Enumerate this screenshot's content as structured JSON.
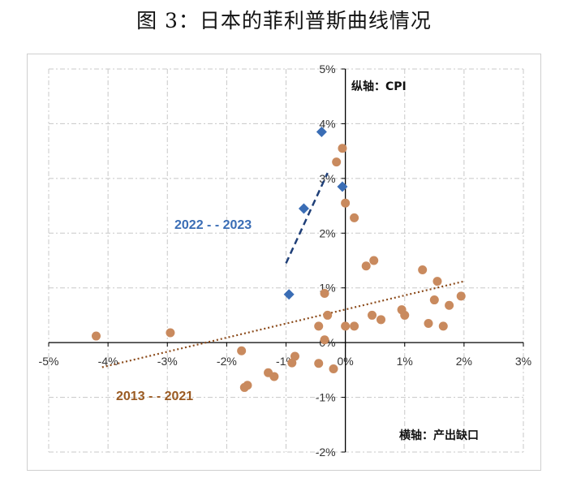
{
  "title": "图 3：日本的菲利普斯曲线情况",
  "chart_data": {
    "type": "scatter",
    "title": "图 3：日本的菲利普斯曲线情况",
    "ylabel": "纵轴：CPI",
    "xlabel": "横轴：产出缺口",
    "xlim": [
      -5,
      3
    ],
    "ylim": [
      -2,
      5
    ],
    "x_ticks": [
      -5,
      -4,
      -3,
      -2,
      -1,
      0,
      1,
      2,
      3
    ],
    "y_ticks": [
      -2,
      -1,
      0,
      1,
      2,
      3,
      4,
      5
    ],
    "x_tick_labels": [
      "-5%",
      "-4%",
      "-3%",
      "-2%",
      "-1%",
      "0%",
      "1%",
      "2%",
      "3%"
    ],
    "y_tick_labels": [
      "-2%",
      "-1%",
      "0%",
      "1%",
      "2%",
      "3%",
      "4%",
      "5%"
    ],
    "grid": true,
    "colors": {
      "series_2022": "#3a6db5",
      "series_2013": "#c98a5e",
      "trend_2013": "#8b4a1a"
    },
    "series": [
      {
        "name": "2022 - - 2023",
        "marker": "diamond",
        "points": [
          {
            "x": -0.95,
            "y": 0.88
          },
          {
            "x": -0.7,
            "y": 2.45
          },
          {
            "x": -0.4,
            "y": 3.85
          },
          {
            "x": -0.05,
            "y": 2.85
          }
        ],
        "trendline": {
          "style": "dashed",
          "from": [
            -1.0,
            1.45
          ],
          "to": [
            -0.3,
            3.1
          ]
        }
      },
      {
        "name": "2013 - - 2021",
        "marker": "circle",
        "points": [
          {
            "x": -4.2,
            "y": 0.12
          },
          {
            "x": -2.95,
            "y": 0.18
          },
          {
            "x": -1.75,
            "y": -0.15
          },
          {
            "x": -1.7,
            "y": -0.82
          },
          {
            "x": -1.65,
            "y": -0.78
          },
          {
            "x": -1.3,
            "y": -0.55
          },
          {
            "x": -1.2,
            "y": -0.62
          },
          {
            "x": -0.85,
            "y": -0.25
          },
          {
            "x": -0.9,
            "y": -0.37
          },
          {
            "x": -0.45,
            "y": 0.3
          },
          {
            "x": -0.45,
            "y": -0.38
          },
          {
            "x": -0.35,
            "y": 0.9
          },
          {
            "x": -0.3,
            "y": 0.5
          },
          {
            "x": -0.35,
            "y": 0.05
          },
          {
            "x": -0.2,
            "y": -0.48
          },
          {
            "x": -0.15,
            "y": 3.3
          },
          {
            "x": -0.05,
            "y": 3.55
          },
          {
            "x": 0.0,
            "y": 2.55
          },
          {
            "x": 0.0,
            "y": 0.3
          },
          {
            "x": 0.15,
            "y": 2.28
          },
          {
            "x": 0.15,
            "y": 0.3
          },
          {
            "x": 0.35,
            "y": 1.4
          },
          {
            "x": 0.48,
            "y": 1.5
          },
          {
            "x": 0.45,
            "y": 0.5
          },
          {
            "x": 0.6,
            "y": 0.42
          },
          {
            "x": 0.95,
            "y": 0.6
          },
          {
            "x": 1.0,
            "y": 0.5
          },
          {
            "x": 1.3,
            "y": 1.33
          },
          {
            "x": 1.4,
            "y": 0.35
          },
          {
            "x": 1.5,
            "y": 0.78
          },
          {
            "x": 1.55,
            "y": 1.12
          },
          {
            "x": 1.65,
            "y": 0.3
          },
          {
            "x": 1.75,
            "y": 0.68
          },
          {
            "x": 1.95,
            "y": 0.85
          }
        ],
        "trendline": {
          "style": "dotted",
          "from": [
            -4.1,
            -0.45
          ],
          "to": [
            2.0,
            1.12
          ]
        }
      }
    ]
  }
}
